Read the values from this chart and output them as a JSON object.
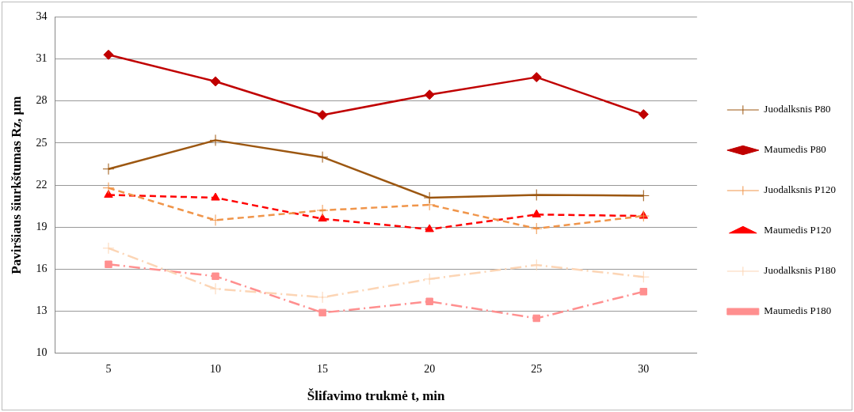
{
  "chart_data": {
    "type": "line",
    "xlabel": "Šlifavimo trukmė t, min",
    "ylabel": "Paviršiaus šiurkštumas Rz, µm",
    "categories": [
      "5",
      "10",
      "15",
      "20",
      "25",
      "30"
    ],
    "series": [
      {
        "name": "Juodalksnis P80",
        "color": "#9c5711",
        "marker": "cross",
        "line_style": "solid",
        "values": [
          23.15,
          25.2,
          24.0,
          21.1,
          21.3,
          21.25
        ]
      },
      {
        "name": "Maumedis P80",
        "color": "#c00000",
        "marker": "diamond",
        "line_style": "solid",
        "values": [
          31.3,
          29.4,
          27.0,
          28.45,
          29.7,
          27.05
        ]
      },
      {
        "name": "Juodalksnis P120",
        "color": "#f0954a",
        "marker": "cross",
        "line_style": "dashed",
        "values": [
          21.8,
          19.5,
          20.2,
          20.6,
          18.9,
          19.8
        ]
      },
      {
        "name": "Maumedis P120",
        "color": "#ff0000",
        "marker": "triangle",
        "line_style": "dashed",
        "values": [
          21.3,
          21.1,
          19.6,
          18.85,
          19.9,
          19.8
        ]
      },
      {
        "name": "Juodalksnis P180",
        "color": "#fcd5b5",
        "marker": "cross",
        "line_style": "dashdot",
        "values": [
          17.5,
          14.6,
          14.0,
          15.3,
          16.3,
          15.45
        ]
      },
      {
        "name": "Maumedis P180",
        "color": "#ff8f8f",
        "marker": "square",
        "line_style": "dashdot",
        "values": [
          16.35,
          15.5,
          12.9,
          13.7,
          12.5,
          14.4
        ]
      }
    ],
    "ylim": [
      10,
      34
    ],
    "yticks": [
      10,
      13,
      16,
      19,
      22,
      25,
      28,
      31,
      34
    ],
    "grid": "y",
    "legend": "right"
  }
}
